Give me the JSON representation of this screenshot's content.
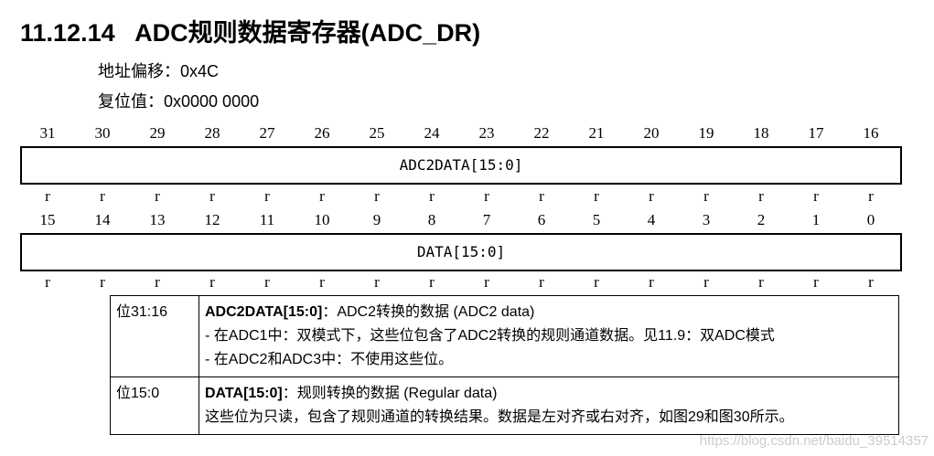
{
  "title": "11.12.14   ADC规则数据寄存器(ADC_DR)",
  "offset": "地址偏移：0x4C",
  "reset": "复位值：0x0000 0000",
  "high_bits": [
    "31",
    "30",
    "29",
    "28",
    "27",
    "26",
    "25",
    "24",
    "23",
    "22",
    "21",
    "20",
    "19",
    "18",
    "17",
    "16"
  ],
  "low_bits": [
    "15",
    "14",
    "13",
    "12",
    "11",
    "10",
    "9",
    "8",
    "7",
    "6",
    "5",
    "4",
    "3",
    "2",
    "1",
    "0"
  ],
  "high_field": "ADC2DATA[15:0]",
  "low_field": "DATA[15:0]",
  "access": "r",
  "rows": [
    {
      "bits": "位31:16",
      "name": "ADC2DATA[15:0]",
      "desc": "：ADC2转换的数据 (ADC2 data)",
      "lines": [
        "- 在ADC1中：双模式下，这些位包含了ADC2转换的规则通道数据。见11.9：双ADC模式",
        "- 在ADC2和ADC3中：不使用这些位。"
      ]
    },
    {
      "bits": "位15:0",
      "name": "DATA[15:0]",
      "desc": "：规则转换的数据 (Regular data)",
      "lines": [
        "这些位为只读，包含了规则通道的转换结果。数据是左对齐或右对齐，如图29和图30所示。"
      ]
    }
  ],
  "watermark": "https://blog.csdn.net/baidu_39514357"
}
